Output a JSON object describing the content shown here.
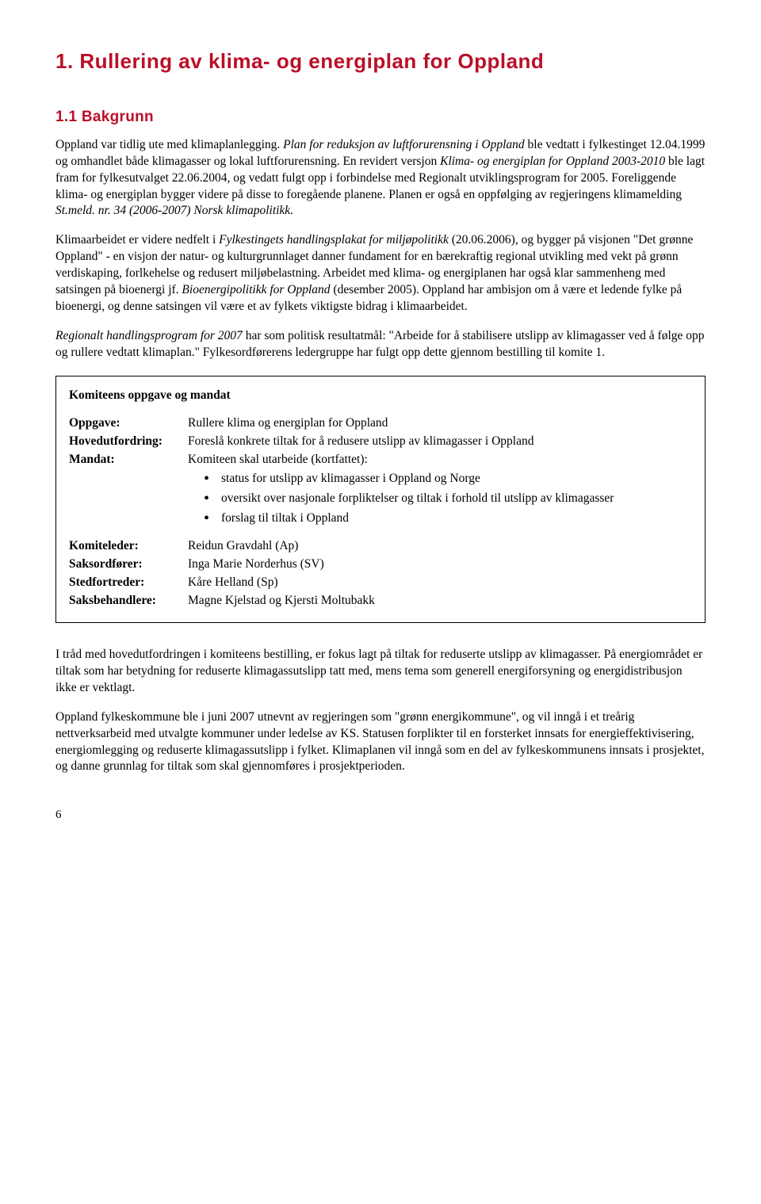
{
  "heading1": "1. Rullering av  klima- og energiplan for Oppland",
  "heading2": "1.1 Bakgrunn",
  "para1": {
    "t1": "Oppland var tidlig ute med klimaplanlegging. ",
    "t2": "Plan for reduksjon av luftforurensning i Oppland",
    "t3": " ble vedtatt i fylkestinget 12.04.1999 og omhandlet både klimagasser og lokal luftforurensning. En revidert versjon ",
    "t4": "Klima- og energiplan for Oppland 2003-2010",
    "t5": " ble lagt fram for fylkesutvalget 22.06.2004, og vedatt fulgt opp i forbindelse med Regionalt utviklingsprogram for 2005. Foreliggende klima- og energiplan bygger videre på disse to foregående planene. Planen er også en oppfølging av regjeringens klimamelding ",
    "t6": "St.meld. nr. 34 (2006-2007) Norsk klimapolitikk."
  },
  "para2": {
    "t1": "Klimaarbeidet er videre nedfelt i ",
    "t2": "Fylkestingets handlingsplakat for miljøpolitikk",
    "t3": " (20.06.2006), og bygger på visjonen \"Det grønne Oppland\" - en visjon der natur- og kulturgrunnlaget danner fundament for en bærekraftig regional utvikling med vekt på grønn verdiskaping, forlkehelse og redusert miljøbelastning. Arbeidet med klima- og energiplanen har også klar sammenheng med satsingen på bioenergi jf. ",
    "t4": "Bioenergipolitikk for Oppland",
    "t5": " (desember 2005). Oppland har ambisjon om å være et ledende fylke på bioenergi, og denne satsingen vil være et av fylkets viktigste bidrag i klimaarbeidet."
  },
  "para3": {
    "t1": "Regionalt handlingsprogram for 2007",
    "t2": "  har som politisk resultatmål: \"Arbeide for å stabilisere utslipp av klimagasser ved å følge opp og rullere vedtatt klimaplan.\" Fylkesordførerens ledergruppe har fulgt opp dette gjennom bestilling til komite 1."
  },
  "box": {
    "title": "Komiteens oppgave og mandat",
    "rows1": [
      {
        "k": "Oppgave:",
        "v": "Rullere klima og energiplan for Oppland"
      },
      {
        "k": "Hovedutfordring:",
        "v": "Foreslå konkrete tiltak for å redusere utslipp av klimagasser i Oppland"
      },
      {
        "k": "Mandat:",
        "v": "Komiteen skal utarbeide (kortfattet):"
      }
    ],
    "bullets": [
      "status for utslipp av klimagasser i Oppland og Norge",
      "oversikt over nasjonale forpliktelser og tiltak i forhold til utslipp av klimagasser",
      "forslag til tiltak i Oppland"
    ],
    "rows2": [
      {
        "k": "Komiteleder:",
        "v": "Reidun Gravdahl (Ap)"
      },
      {
        "k": "Saksordfører:",
        "v": "Inga Marie Norderhus (SV)"
      },
      {
        "k": "Stedfortreder:",
        "v": "Kåre Helland (Sp)"
      },
      {
        "k": "Saksbehandlere:",
        "v": "Magne Kjelstad og Kjersti Moltubakk"
      }
    ]
  },
  "para4": "I tråd med hovedutfordringen i komiteens bestilling, er fokus lagt på tiltak for reduserte utslipp av klimagasser. På energiområdet er tiltak som har betydning for reduserte klimagassutslipp tatt med, mens tema som generell energiforsyning og energidistribusjon ikke er vektlagt.",
  "para5": "Oppland fylkeskommune ble i juni 2007 utnevnt av regjeringen som \"grønn energikommune\", og vil inngå i et treårig nettverksarbeid med utvalgte kommuner under ledelse av KS. Statusen forplikter til en forsterket innsats for energieffektivisering, energiomlegging og reduserte klimagassutslipp i fylket. Klimaplanen vil inngå som en del av fylkeskommunens innsats i prosjektet, og danne grunnlag for tiltak som skal gjennomføres i prosjektperioden.",
  "pageNumber": "6"
}
